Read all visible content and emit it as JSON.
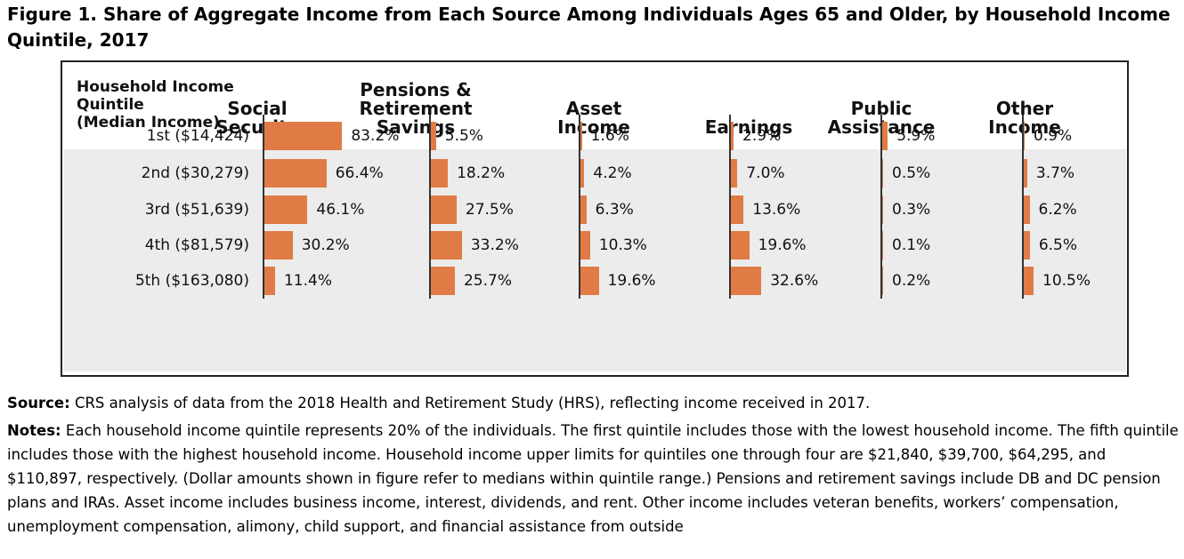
{
  "figure": {
    "title": "Figure 1. Share of Aggregate Income from Each Source Among Individuals Ages 65 and Older, by Household Income Quintile, 2017",
    "row_header": "Household Income\nQuintile\n(Median Income)"
  },
  "chart_data": {
    "type": "bar",
    "orientation": "horizontal",
    "layout": "small-multiples",
    "categories": [
      "1st ($14,424)",
      "2nd ($30,279)",
      "3rd ($51,639)",
      "4th ($81,579)",
      "5th ($163,080)"
    ],
    "series": [
      {
        "name": "Social\nSecurity",
        "values": [
          83.2,
          66.4,
          46.1,
          30.2,
          11.4
        ],
        "labels": [
          "83.2%",
          "66.4%",
          "46.1%",
          "30.2%",
          "11.4%"
        ]
      },
      {
        "name": "Pensions &\nRetirement\nSavings",
        "values": [
          5.5,
          18.2,
          27.5,
          33.2,
          25.7
        ],
        "labels": [
          "5.5%",
          "18.2%",
          "27.5%",
          "33.2%",
          "25.7%"
        ]
      },
      {
        "name": "Asset\nIncome",
        "values": [
          1.6,
          4.2,
          6.3,
          10.3,
          19.6
        ],
        "labels": [
          "1.6%",
          "4.2%",
          "6.3%",
          "10.3%",
          "19.6%"
        ]
      },
      {
        "name": "Earnings",
        "values": [
          2.9,
          7.0,
          13.6,
          19.6,
          32.6
        ],
        "labels": [
          "2.9%",
          "7.0%",
          "13.6%",
          "19.6%",
          "32.6%"
        ]
      },
      {
        "name": "Public\nAssistance",
        "values": [
          5.9,
          0.5,
          0.3,
          0.1,
          0.2
        ],
        "labels": [
          "5.9%",
          "0.5%",
          "0.3%",
          "0.1%",
          "0.2%"
        ]
      },
      {
        "name": "Other\nIncome",
        "values": [
          0.9,
          3.7,
          6.2,
          6.5,
          10.5
        ],
        "labels": [
          "0.9%",
          "3.7%",
          "6.2%",
          "6.5%",
          "10.5%"
        ]
      }
    ],
    "bar_color": "#e07b45",
    "value_unit": "%"
  },
  "source": {
    "label": "Source:",
    "text": "CRS analysis of data from the 2018 Health and Retirement Study (HRS), reflecting income received in 2017."
  },
  "notes": {
    "label": "Notes:",
    "text": "Each household income quintile represents 20% of the individuals. The first quintile includes those with the lowest household income. The fifth quintile includes those with the highest household income. Household income upper limits for quintiles one through four are $21,840, $39,700, $64,295, and $110,897, respectively. (Dollar amounts shown in figure refer to medians within quintile range.) Pensions and retirement savings include DB and DC pension plans and IRAs. Asset income includes business income, interest, dividends, and rent. Other income includes veteran benefits, workers’ compensation, unemployment compensation, alimony, child support, and financial assistance from outside"
  }
}
